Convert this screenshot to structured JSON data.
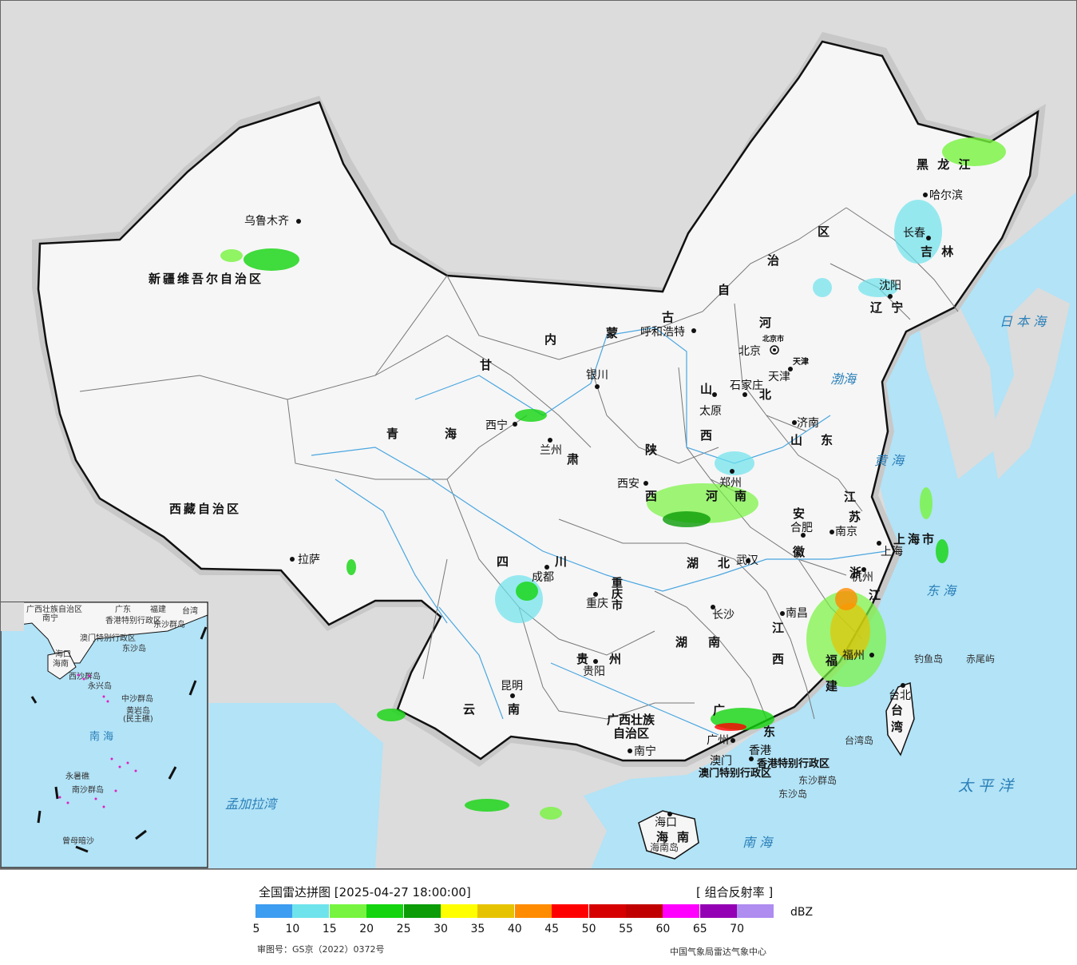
{
  "colors": {
    "land": "#f6f6f6",
    "ocean": "#b2e3f7",
    "foreign": "#dcdcdc",
    "boundary": "#111111",
    "province_line": "#777777",
    "river": "#4aa6e0",
    "sea_label": "#2a7fb8",
    "city_label": "#111111",
    "province_label": "#111111",
    "special_label": "#7a2a2a"
  },
  "map": {
    "provinces": [
      {
        "id": "xinjiang",
        "label": "新疆维吾尔自治区"
      },
      {
        "id": "xizang",
        "label": "西藏自治区"
      },
      {
        "id": "qinghai_q",
        "label": "青"
      },
      {
        "id": "qinghai_h",
        "label": "海"
      },
      {
        "id": "gansu_g",
        "label": "甘"
      },
      {
        "id": "gansu_s",
        "label": "肃"
      },
      {
        "id": "neimeng_n",
        "label": "内"
      },
      {
        "id": "neimeng_m",
        "label": "蒙"
      },
      {
        "id": "neimeng_g",
        "label": "古"
      },
      {
        "id": "neimeng_z",
        "label": "自"
      },
      {
        "id": "neimeng_zh",
        "label": "治"
      },
      {
        "id": "neimeng_q",
        "label": "区"
      },
      {
        "id": "heilongjiang",
        "label": "黑 龙 江"
      },
      {
        "id": "jilin",
        "label": "吉 林"
      },
      {
        "id": "liaoning",
        "label": "辽 宁"
      },
      {
        "id": "hebei_h",
        "label": "河"
      },
      {
        "id": "hebei_b",
        "label": "北"
      },
      {
        "id": "shanxi_s",
        "label": "山"
      },
      {
        "id": "shanxi_x",
        "label": "西"
      },
      {
        "id": "shandong_s",
        "label": "山"
      },
      {
        "id": "shandong_d",
        "label": "东"
      },
      {
        "id": "shaanxi_s",
        "label": "陕"
      },
      {
        "id": "shaanxi_x",
        "label": "西"
      },
      {
        "id": "henan_h",
        "label": "河"
      },
      {
        "id": "henan_n",
        "label": "南"
      },
      {
        "id": "jiangsu_j",
        "label": "江"
      },
      {
        "id": "jiangsu_s",
        "label": "苏"
      },
      {
        "id": "anhui_a",
        "label": "安"
      },
      {
        "id": "anhui_h",
        "label": "徽"
      },
      {
        "id": "hubei_h",
        "label": "湖"
      },
      {
        "id": "hubei_b",
        "label": "北"
      },
      {
        "id": "sichuan_s",
        "label": "四"
      },
      {
        "id": "sichuan_c",
        "label": "川"
      },
      {
        "id": "chongqing",
        "label": "重庆市"
      },
      {
        "id": "shanghai",
        "label": "上海市"
      },
      {
        "id": "zhejiang_z",
        "label": "浙"
      },
      {
        "id": "zhejiang_j",
        "label": "江"
      },
      {
        "id": "hunan_h",
        "label": "湖"
      },
      {
        "id": "hunan_n",
        "label": "南"
      },
      {
        "id": "jiangxi_j",
        "label": "江"
      },
      {
        "id": "jiangxi_x",
        "label": "西"
      },
      {
        "id": "fujian_f",
        "label": "福"
      },
      {
        "id": "fujian_j",
        "label": "建"
      },
      {
        "id": "guizhou_g",
        "label": "贵"
      },
      {
        "id": "guizhou_z",
        "label": "州"
      },
      {
        "id": "yunnan_y",
        "label": "云"
      },
      {
        "id": "yunnan_n",
        "label": "南"
      },
      {
        "id": "guangxi_1",
        "label": "广西壮族"
      },
      {
        "id": "guangxi_2",
        "label": "自治区"
      },
      {
        "id": "guangdong_g",
        "label": "广"
      },
      {
        "id": "guangdong_d",
        "label": "东"
      },
      {
        "id": "hainan_h",
        "label": "海"
      },
      {
        "id": "hainan_n",
        "label": "南"
      },
      {
        "id": "taiwan_t",
        "label": "台"
      },
      {
        "id": "taiwan_w",
        "label": "湾"
      },
      {
        "id": "hongkong",
        "label": "香港特别行政区"
      },
      {
        "id": "macao",
        "label": "澳门特别行政区"
      },
      {
        "id": "beijing",
        "label": "北京市"
      },
      {
        "id": "tianjin",
        "label": "天津"
      }
    ],
    "cities": [
      {
        "id": "urumqi",
        "label": "乌鲁木齐"
      },
      {
        "id": "lhasa",
        "label": "拉萨"
      },
      {
        "id": "xining",
        "label": "西宁"
      },
      {
        "id": "lanzhou",
        "label": "兰州"
      },
      {
        "id": "yinchuan",
        "label": "银川"
      },
      {
        "id": "hohhot",
        "label": "呼和浩特"
      },
      {
        "id": "beijing",
        "label": "北京"
      },
      {
        "id": "tianjin",
        "label": "天津"
      },
      {
        "id": "shijiazhuang",
        "label": "石家庄"
      },
      {
        "id": "taiyuan",
        "label": "太原"
      },
      {
        "id": "jinan",
        "label": "济南"
      },
      {
        "id": "xian",
        "label": "西安"
      },
      {
        "id": "zhengzhou",
        "label": "郑州"
      },
      {
        "id": "hefei",
        "label": "合肥"
      },
      {
        "id": "nanjing",
        "label": "南京"
      },
      {
        "id": "shanghai",
        "label": "上海"
      },
      {
        "id": "hangzhou",
        "label": "杭州"
      },
      {
        "id": "wuhan",
        "label": "武汉"
      },
      {
        "id": "chengdu",
        "label": "成都"
      },
      {
        "id": "chongqing",
        "label": "重庆"
      },
      {
        "id": "changsha",
        "label": "长沙"
      },
      {
        "id": "nanchang",
        "label": "南昌"
      },
      {
        "id": "fuzhou",
        "label": "福州"
      },
      {
        "id": "guiyang",
        "label": "贵阳"
      },
      {
        "id": "kunming",
        "label": "昆明"
      },
      {
        "id": "nanning",
        "label": "南宁"
      },
      {
        "id": "guangzhou",
        "label": "广州"
      },
      {
        "id": "hongkong",
        "label": "香港"
      },
      {
        "id": "macao",
        "label": "澳门"
      },
      {
        "id": "haikou",
        "label": "海口"
      },
      {
        "id": "taipei",
        "label": "台北"
      },
      {
        "id": "harbin",
        "label": "哈尔滨"
      },
      {
        "id": "changchun",
        "label": "长春"
      },
      {
        "id": "shenyang",
        "label": "沈阳"
      }
    ],
    "seas": [
      {
        "id": "bohai",
        "label": "渤海"
      },
      {
        "id": "huanghai",
        "label": "黄 海"
      },
      {
        "id": "donghai",
        "label": "东 海"
      },
      {
        "id": "nanhai",
        "label": "南 海"
      },
      {
        "id": "taipingyang",
        "label": "太 平 洋"
      },
      {
        "id": "ribenhai",
        "label": "日 本 海"
      },
      {
        "id": "mengjialawan",
        "label": "孟加拉湾"
      }
    ],
    "islands": [
      {
        "id": "diaoyudao",
        "label": "钓鱼岛"
      },
      {
        "id": "chiweiyu",
        "label": "赤尾屿"
      },
      {
        "id": "taiwandao",
        "label": "台湾岛"
      },
      {
        "id": "dongshaqundao",
        "label": "东沙群岛"
      },
      {
        "id": "dongshadao",
        "label": "东沙岛"
      },
      {
        "id": "hainandao",
        "label": "海南岛"
      }
    ],
    "inset": {
      "labels": [
        {
          "id": "gx",
          "label": "广西壮族自治区"
        },
        {
          "id": "nanning",
          "label": "南宁"
        },
        {
          "id": "gd",
          "label": "广东"
        },
        {
          "id": "fujian",
          "label": "福建"
        },
        {
          "id": "taiwan",
          "label": "台湾"
        },
        {
          "id": "hk",
          "label": "香港特别行政区"
        },
        {
          "id": "dongsha",
          "label": "东沙群岛"
        },
        {
          "id": "macao",
          "label": "澳门特别行政区"
        },
        {
          "id": "dongshadao",
          "label": "东沙岛"
        },
        {
          "id": "haikou",
          "label": "海口"
        },
        {
          "id": "hainan",
          "label": "海南"
        },
        {
          "id": "xisha",
          "label": "西沙群岛"
        },
        {
          "id": "yongxing",
          "label": "永兴岛"
        },
        {
          "id": "zhongsha",
          "label": "中沙群岛"
        },
        {
          "id": "huangyan",
          "label": "黄岩岛"
        },
        {
          "id": "huangyan2",
          "label": "(民主礁)"
        },
        {
          "id": "nanhai",
          "label": "南 海"
        },
        {
          "id": "yongshu",
          "label": "永暑礁"
        },
        {
          "id": "nansha",
          "label": "南沙群岛"
        },
        {
          "id": "zengmu",
          "label": "曾母暗沙"
        }
      ]
    }
  },
  "footer": {
    "title": "全国雷达拼图 [2025-04-27 18:00:00]",
    "product": "[ 组合反射率 ]",
    "unit": "dBZ",
    "legend_colors": [
      "#3d9df0",
      "#6ee3ec",
      "#77f43f",
      "#13d40e",
      "#0b9c08",
      "#ffff00",
      "#e6c300",
      "#ff8c00",
      "#ff0000",
      "#d60000",
      "#c00000",
      "#ff00ff",
      "#9400b3",
      "#ae8cf0"
    ],
    "legend_ticks": [
      "5",
      "10",
      "15",
      "20",
      "25",
      "30",
      "35",
      "40",
      "45",
      "50",
      "55",
      "60",
      "65",
      "70"
    ],
    "review_no": "审图号：GS京（2022）0372号",
    "source": "中国气象局雷达气象中心"
  }
}
